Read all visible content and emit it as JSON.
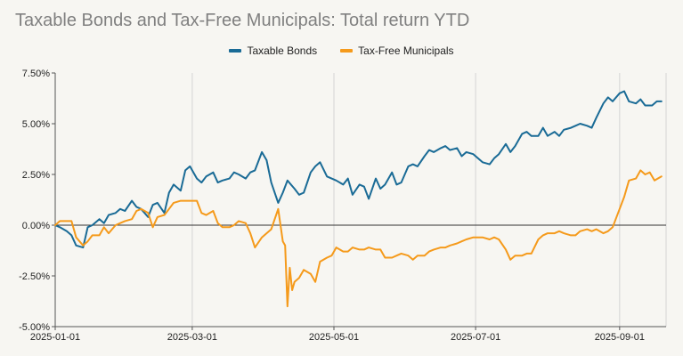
{
  "colors": {
    "background": "#f7f6f2",
    "grid": "#d4d4d4",
    "zero_line": "#333333"
  },
  "chart_data": {
    "type": "line",
    "title": "Taxable Bonds and Tax-Free Municipals: Total return YTD",
    "xlabel": "",
    "ylabel": "",
    "ylim": [
      -5,
      7.5
    ],
    "xlim": [
      "2025-01-01",
      "2025-09-20"
    ],
    "y_ticks": [
      7.5,
      5,
      2.5,
      0,
      -2.5,
      -5
    ],
    "y_tick_labels": [
      "7.50%",
      "5.00%",
      "2.50%",
      "0.00%",
      "-2.50%",
      "-5.00%"
    ],
    "x_ticks": [
      "2025-01-01",
      "2025-03-01",
      "2025-05-01",
      "2025-07-01",
      "2025-09-01"
    ],
    "x_tick_labels": [
      "2025-01-01",
      "2025-03-01",
      "2025-05-01",
      "2025-07-01",
      "2025-09-01"
    ],
    "grid": "vertical lines at x ticks",
    "legend_position": "top-center",
    "series": [
      {
        "name": "Taxable Bonds",
        "color": "#1a6b96",
        "points": [
          [
            "2025-01-01",
            0
          ],
          [
            "2025-01-03",
            -0.1
          ],
          [
            "2025-01-06",
            -0.3
          ],
          [
            "2025-01-08",
            -0.5
          ],
          [
            "2025-01-10",
            -1.0
          ],
          [
            "2025-01-13",
            -1.1
          ],
          [
            "2025-01-15",
            -0.1
          ],
          [
            "2025-01-17",
            0.0
          ],
          [
            "2025-01-20",
            0.3
          ],
          [
            "2025-01-22",
            0.1
          ],
          [
            "2025-01-24",
            0.5
          ],
          [
            "2025-01-27",
            0.6
          ],
          [
            "2025-01-29",
            0.8
          ],
          [
            "2025-01-31",
            0.7
          ],
          [
            "2025-02-03",
            1.2
          ],
          [
            "2025-02-05",
            0.9
          ],
          [
            "2025-02-07",
            0.8
          ],
          [
            "2025-02-10",
            0.4
          ],
          [
            "2025-02-12",
            1.0
          ],
          [
            "2025-02-14",
            1.1
          ],
          [
            "2025-02-17",
            0.6
          ],
          [
            "2025-02-19",
            1.6
          ],
          [
            "2025-02-21",
            2.0
          ],
          [
            "2025-02-24",
            1.7
          ],
          [
            "2025-02-26",
            2.7
          ],
          [
            "2025-02-28",
            2.9
          ],
          [
            "2025-03-03",
            2.3
          ],
          [
            "2025-03-05",
            2.1
          ],
          [
            "2025-03-07",
            2.4
          ],
          [
            "2025-03-10",
            2.6
          ],
          [
            "2025-03-12",
            2.1
          ],
          [
            "2025-03-14",
            2.2
          ],
          [
            "2025-03-17",
            2.3
          ],
          [
            "2025-03-19",
            2.6
          ],
          [
            "2025-03-21",
            2.5
          ],
          [
            "2025-03-24",
            2.3
          ],
          [
            "2025-03-26",
            2.6
          ],
          [
            "2025-03-28",
            2.7
          ],
          [
            "2025-03-31",
            3.6
          ],
          [
            "2025-04-02",
            3.2
          ],
          [
            "2025-04-04",
            2.1
          ],
          [
            "2025-04-07",
            1.1
          ],
          [
            "2025-04-09",
            1.6
          ],
          [
            "2025-04-11",
            2.2
          ],
          [
            "2025-04-14",
            1.8
          ],
          [
            "2025-04-16",
            1.5
          ],
          [
            "2025-04-18",
            1.6
          ],
          [
            "2025-04-21",
            2.6
          ],
          [
            "2025-04-23",
            2.9
          ],
          [
            "2025-04-25",
            3.1
          ],
          [
            "2025-04-28",
            2.4
          ],
          [
            "2025-04-30",
            2.3
          ],
          [
            "2025-05-02",
            2.2
          ],
          [
            "2025-05-05",
            2.0
          ],
          [
            "2025-05-07",
            2.3
          ],
          [
            "2025-05-09",
            1.5
          ],
          [
            "2025-05-12",
            2.0
          ],
          [
            "2025-05-14",
            1.9
          ],
          [
            "2025-05-16",
            1.3
          ],
          [
            "2025-05-19",
            2.3
          ],
          [
            "2025-05-21",
            1.8
          ],
          [
            "2025-05-23",
            2.0
          ],
          [
            "2025-05-26",
            2.6
          ],
          [
            "2025-05-28",
            2.0
          ],
          [
            "2025-05-30",
            2.1
          ],
          [
            "2025-06-02",
            2.9
          ],
          [
            "2025-06-04",
            3.0
          ],
          [
            "2025-06-06",
            2.9
          ],
          [
            "2025-06-09",
            3.4
          ],
          [
            "2025-06-11",
            3.7
          ],
          [
            "2025-06-13",
            3.6
          ],
          [
            "2025-06-16",
            3.8
          ],
          [
            "2025-06-18",
            3.9
          ],
          [
            "2025-06-20",
            3.7
          ],
          [
            "2025-06-23",
            3.8
          ],
          [
            "2025-06-25",
            3.4
          ],
          [
            "2025-06-27",
            3.6
          ],
          [
            "2025-06-30",
            3.5
          ],
          [
            "2025-07-02",
            3.3
          ],
          [
            "2025-07-04",
            3.1
          ],
          [
            "2025-07-07",
            3.0
          ],
          [
            "2025-07-09",
            3.3
          ],
          [
            "2025-07-11",
            3.5
          ],
          [
            "2025-07-14",
            4.0
          ],
          [
            "2025-07-16",
            3.6
          ],
          [
            "2025-07-18",
            3.9
          ],
          [
            "2025-07-21",
            4.5
          ],
          [
            "2025-07-23",
            4.6
          ],
          [
            "2025-07-25",
            4.4
          ],
          [
            "2025-07-28",
            4.4
          ],
          [
            "2025-07-30",
            4.8
          ],
          [
            "2025-08-01",
            4.4
          ],
          [
            "2025-08-04",
            4.6
          ],
          [
            "2025-08-06",
            4.4
          ],
          [
            "2025-08-08",
            4.7
          ],
          [
            "2025-08-11",
            4.8
          ],
          [
            "2025-08-13",
            4.9
          ],
          [
            "2025-08-15",
            5.0
          ],
          [
            "2025-08-18",
            4.9
          ],
          [
            "2025-08-20",
            4.8
          ],
          [
            "2025-08-22",
            5.3
          ],
          [
            "2025-08-25",
            6.0
          ],
          [
            "2025-08-27",
            6.3
          ],
          [
            "2025-08-29",
            6.1
          ],
          [
            "2025-09-01",
            6.5
          ],
          [
            "2025-09-03",
            6.6
          ],
          [
            "2025-09-05",
            6.1
          ],
          [
            "2025-09-08",
            6.0
          ],
          [
            "2025-09-10",
            6.2
          ],
          [
            "2025-09-12",
            5.9
          ],
          [
            "2025-09-15",
            5.9
          ],
          [
            "2025-09-17",
            6.1
          ],
          [
            "2025-09-19",
            6.1
          ]
        ]
      },
      {
        "name": "Tax-Free Municipals",
        "color": "#f59a1b",
        "points": [
          [
            "2025-01-01",
            0
          ],
          [
            "2025-01-03",
            0.2
          ],
          [
            "2025-01-06",
            0.2
          ],
          [
            "2025-01-08",
            0.2
          ],
          [
            "2025-01-10",
            -0.6
          ],
          [
            "2025-01-13",
            -1.0
          ],
          [
            "2025-01-15",
            -0.8
          ],
          [
            "2025-01-17",
            -0.5
          ],
          [
            "2025-01-20",
            -0.5
          ],
          [
            "2025-01-22",
            -0.1
          ],
          [
            "2025-01-24",
            -0.4
          ],
          [
            "2025-01-27",
            0.0
          ],
          [
            "2025-01-29",
            0.1
          ],
          [
            "2025-01-31",
            0.2
          ],
          [
            "2025-02-03",
            0.3
          ],
          [
            "2025-02-05",
            0.7
          ],
          [
            "2025-02-07",
            0.8
          ],
          [
            "2025-02-10",
            0.6
          ],
          [
            "2025-02-12",
            -0.1
          ],
          [
            "2025-02-14",
            0.4
          ],
          [
            "2025-02-17",
            0.5
          ],
          [
            "2025-02-19",
            0.8
          ],
          [
            "2025-02-21",
            1.1
          ],
          [
            "2025-02-24",
            1.2
          ],
          [
            "2025-02-26",
            1.2
          ],
          [
            "2025-02-28",
            1.2
          ],
          [
            "2025-03-03",
            1.2
          ],
          [
            "2025-03-05",
            0.6
          ],
          [
            "2025-03-07",
            0.5
          ],
          [
            "2025-03-10",
            0.7
          ],
          [
            "2025-03-12",
            0.1
          ],
          [
            "2025-03-14",
            -0.1
          ],
          [
            "2025-03-17",
            -0.1
          ],
          [
            "2025-03-19",
            0.0
          ],
          [
            "2025-03-21",
            0.2
          ],
          [
            "2025-03-24",
            0.1
          ],
          [
            "2025-03-26",
            -0.4
          ],
          [
            "2025-03-28",
            -1.1
          ],
          [
            "2025-03-31",
            -0.6
          ],
          [
            "2025-04-02",
            -0.4
          ],
          [
            "2025-04-04",
            -0.2
          ],
          [
            "2025-04-07",
            0.8
          ],
          [
            "2025-04-09",
            -0.8
          ],
          [
            "2025-04-10",
            -1.0
          ],
          [
            "2025-04-11",
            -4.0
          ],
          [
            "2025-04-12",
            -2.1
          ],
          [
            "2025-04-13",
            -3.2
          ],
          [
            "2025-04-14",
            -2.8
          ],
          [
            "2025-04-16",
            -2.6
          ],
          [
            "2025-04-18",
            -2.2
          ],
          [
            "2025-04-21",
            -2.4
          ],
          [
            "2025-04-23",
            -2.8
          ],
          [
            "2025-04-25",
            -1.8
          ],
          [
            "2025-04-28",
            -1.6
          ],
          [
            "2025-04-30",
            -1.5
          ],
          [
            "2025-05-02",
            -1.1
          ],
          [
            "2025-05-05",
            -1.3
          ],
          [
            "2025-05-07",
            -1.3
          ],
          [
            "2025-05-09",
            -1.1
          ],
          [
            "2025-05-12",
            -1.2
          ],
          [
            "2025-05-14",
            -1.2
          ],
          [
            "2025-05-16",
            -1.1
          ],
          [
            "2025-05-19",
            -1.2
          ],
          [
            "2025-05-21",
            -1.2
          ],
          [
            "2025-05-23",
            -1.6
          ],
          [
            "2025-05-26",
            -1.6
          ],
          [
            "2025-05-28",
            -1.5
          ],
          [
            "2025-05-30",
            -1.4
          ],
          [
            "2025-06-02",
            -1.5
          ],
          [
            "2025-06-04",
            -1.7
          ],
          [
            "2025-06-06",
            -1.5
          ],
          [
            "2025-06-09",
            -1.5
          ],
          [
            "2025-06-11",
            -1.3
          ],
          [
            "2025-06-13",
            -1.2
          ],
          [
            "2025-06-16",
            -1.1
          ],
          [
            "2025-06-18",
            -1.1
          ],
          [
            "2025-06-20",
            -1.0
          ],
          [
            "2025-06-23",
            -0.9
          ],
          [
            "2025-06-25",
            -0.8
          ],
          [
            "2025-06-27",
            -0.7
          ],
          [
            "2025-06-30",
            -0.6
          ],
          [
            "2025-07-02",
            -0.6
          ],
          [
            "2025-07-04",
            -0.6
          ],
          [
            "2025-07-07",
            -0.7
          ],
          [
            "2025-07-09",
            -0.6
          ],
          [
            "2025-07-11",
            -0.7
          ],
          [
            "2025-07-14",
            -1.2
          ],
          [
            "2025-07-16",
            -1.7
          ],
          [
            "2025-07-18",
            -1.5
          ],
          [
            "2025-07-21",
            -1.5
          ],
          [
            "2025-07-23",
            -1.4
          ],
          [
            "2025-07-25",
            -1.4
          ],
          [
            "2025-07-28",
            -0.7
          ],
          [
            "2025-07-30",
            -0.5
          ],
          [
            "2025-08-01",
            -0.4
          ],
          [
            "2025-08-04",
            -0.4
          ],
          [
            "2025-08-06",
            -0.3
          ],
          [
            "2025-08-08",
            -0.4
          ],
          [
            "2025-08-11",
            -0.5
          ],
          [
            "2025-08-13",
            -0.5
          ],
          [
            "2025-08-15",
            -0.3
          ],
          [
            "2025-08-18",
            -0.2
          ],
          [
            "2025-08-20",
            -0.3
          ],
          [
            "2025-08-22",
            -0.2
          ],
          [
            "2025-08-25",
            -0.4
          ],
          [
            "2025-08-27",
            -0.3
          ],
          [
            "2025-08-29",
            -0.1
          ],
          [
            "2025-09-01",
            0.8
          ],
          [
            "2025-09-03",
            1.4
          ],
          [
            "2025-09-05",
            2.2
          ],
          [
            "2025-09-08",
            2.3
          ],
          [
            "2025-09-10",
            2.7
          ],
          [
            "2025-09-12",
            2.5
          ],
          [
            "2025-09-14",
            2.6
          ],
          [
            "2025-09-16",
            2.2
          ],
          [
            "2025-09-19",
            2.4
          ]
        ]
      }
    ]
  }
}
